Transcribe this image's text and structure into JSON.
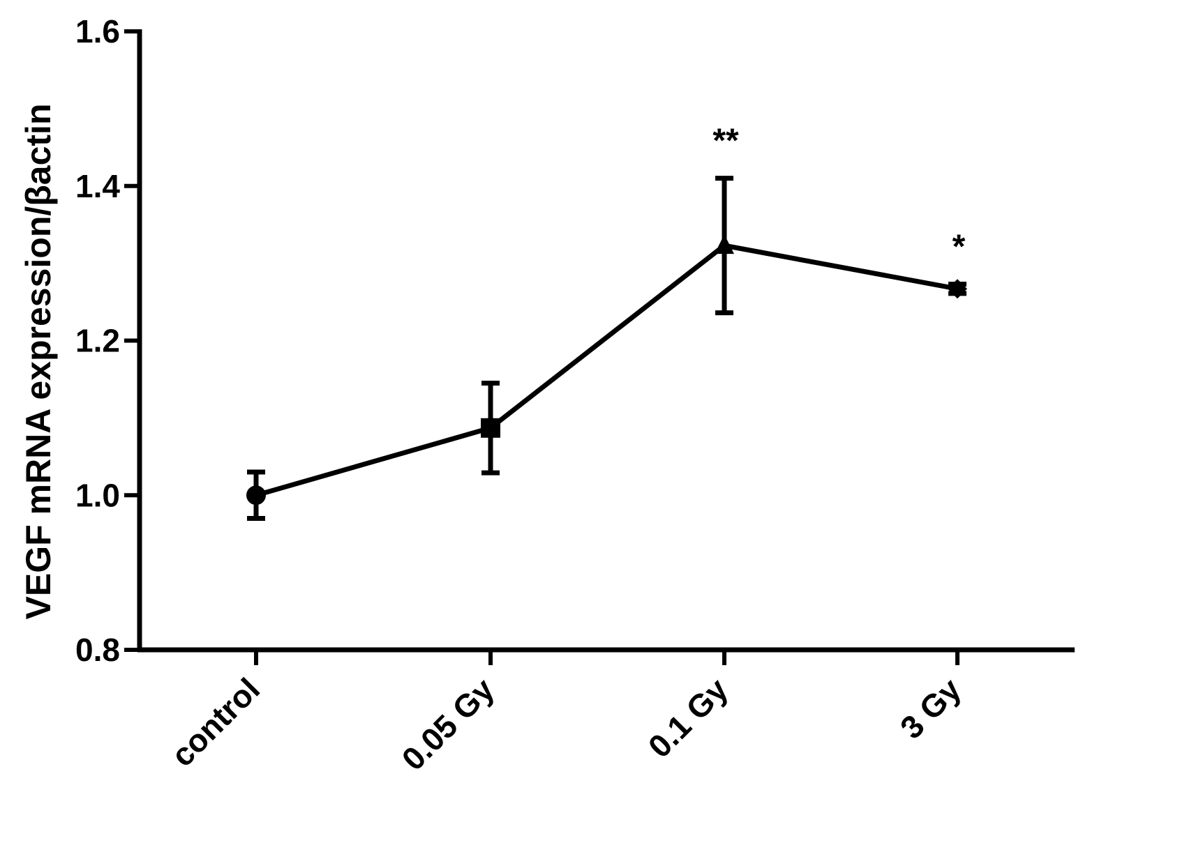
{
  "chart_data": {
    "type": "line",
    "title": "",
    "xlabel": "",
    "ylabel": "VEGF mRNA expression/βactin",
    "ylim": [
      0.8,
      1.6
    ],
    "yticks": [
      "0.8",
      "1.0",
      "1.2",
      "1.4",
      "1.6"
    ],
    "categories": [
      "control",
      "0.05 Gy",
      "0.1 Gy",
      "3 Gy"
    ],
    "series": [
      {
        "values": [
          1.0,
          1.087,
          1.323,
          1.267
        ],
        "error_low": [
          0.97,
          1.029,
          1.236,
          1.261
        ],
        "error_high": [
          1.03,
          1.145,
          1.41,
          1.273
        ],
        "markers": [
          "circle",
          "square",
          "triangle",
          "diamond"
        ]
      }
    ],
    "annotations": [
      {
        "category": "0.1 Gy",
        "text": "**"
      },
      {
        "category": "3 Gy",
        "text": "*"
      }
    ],
    "grid": false,
    "line_color": "#000000"
  }
}
